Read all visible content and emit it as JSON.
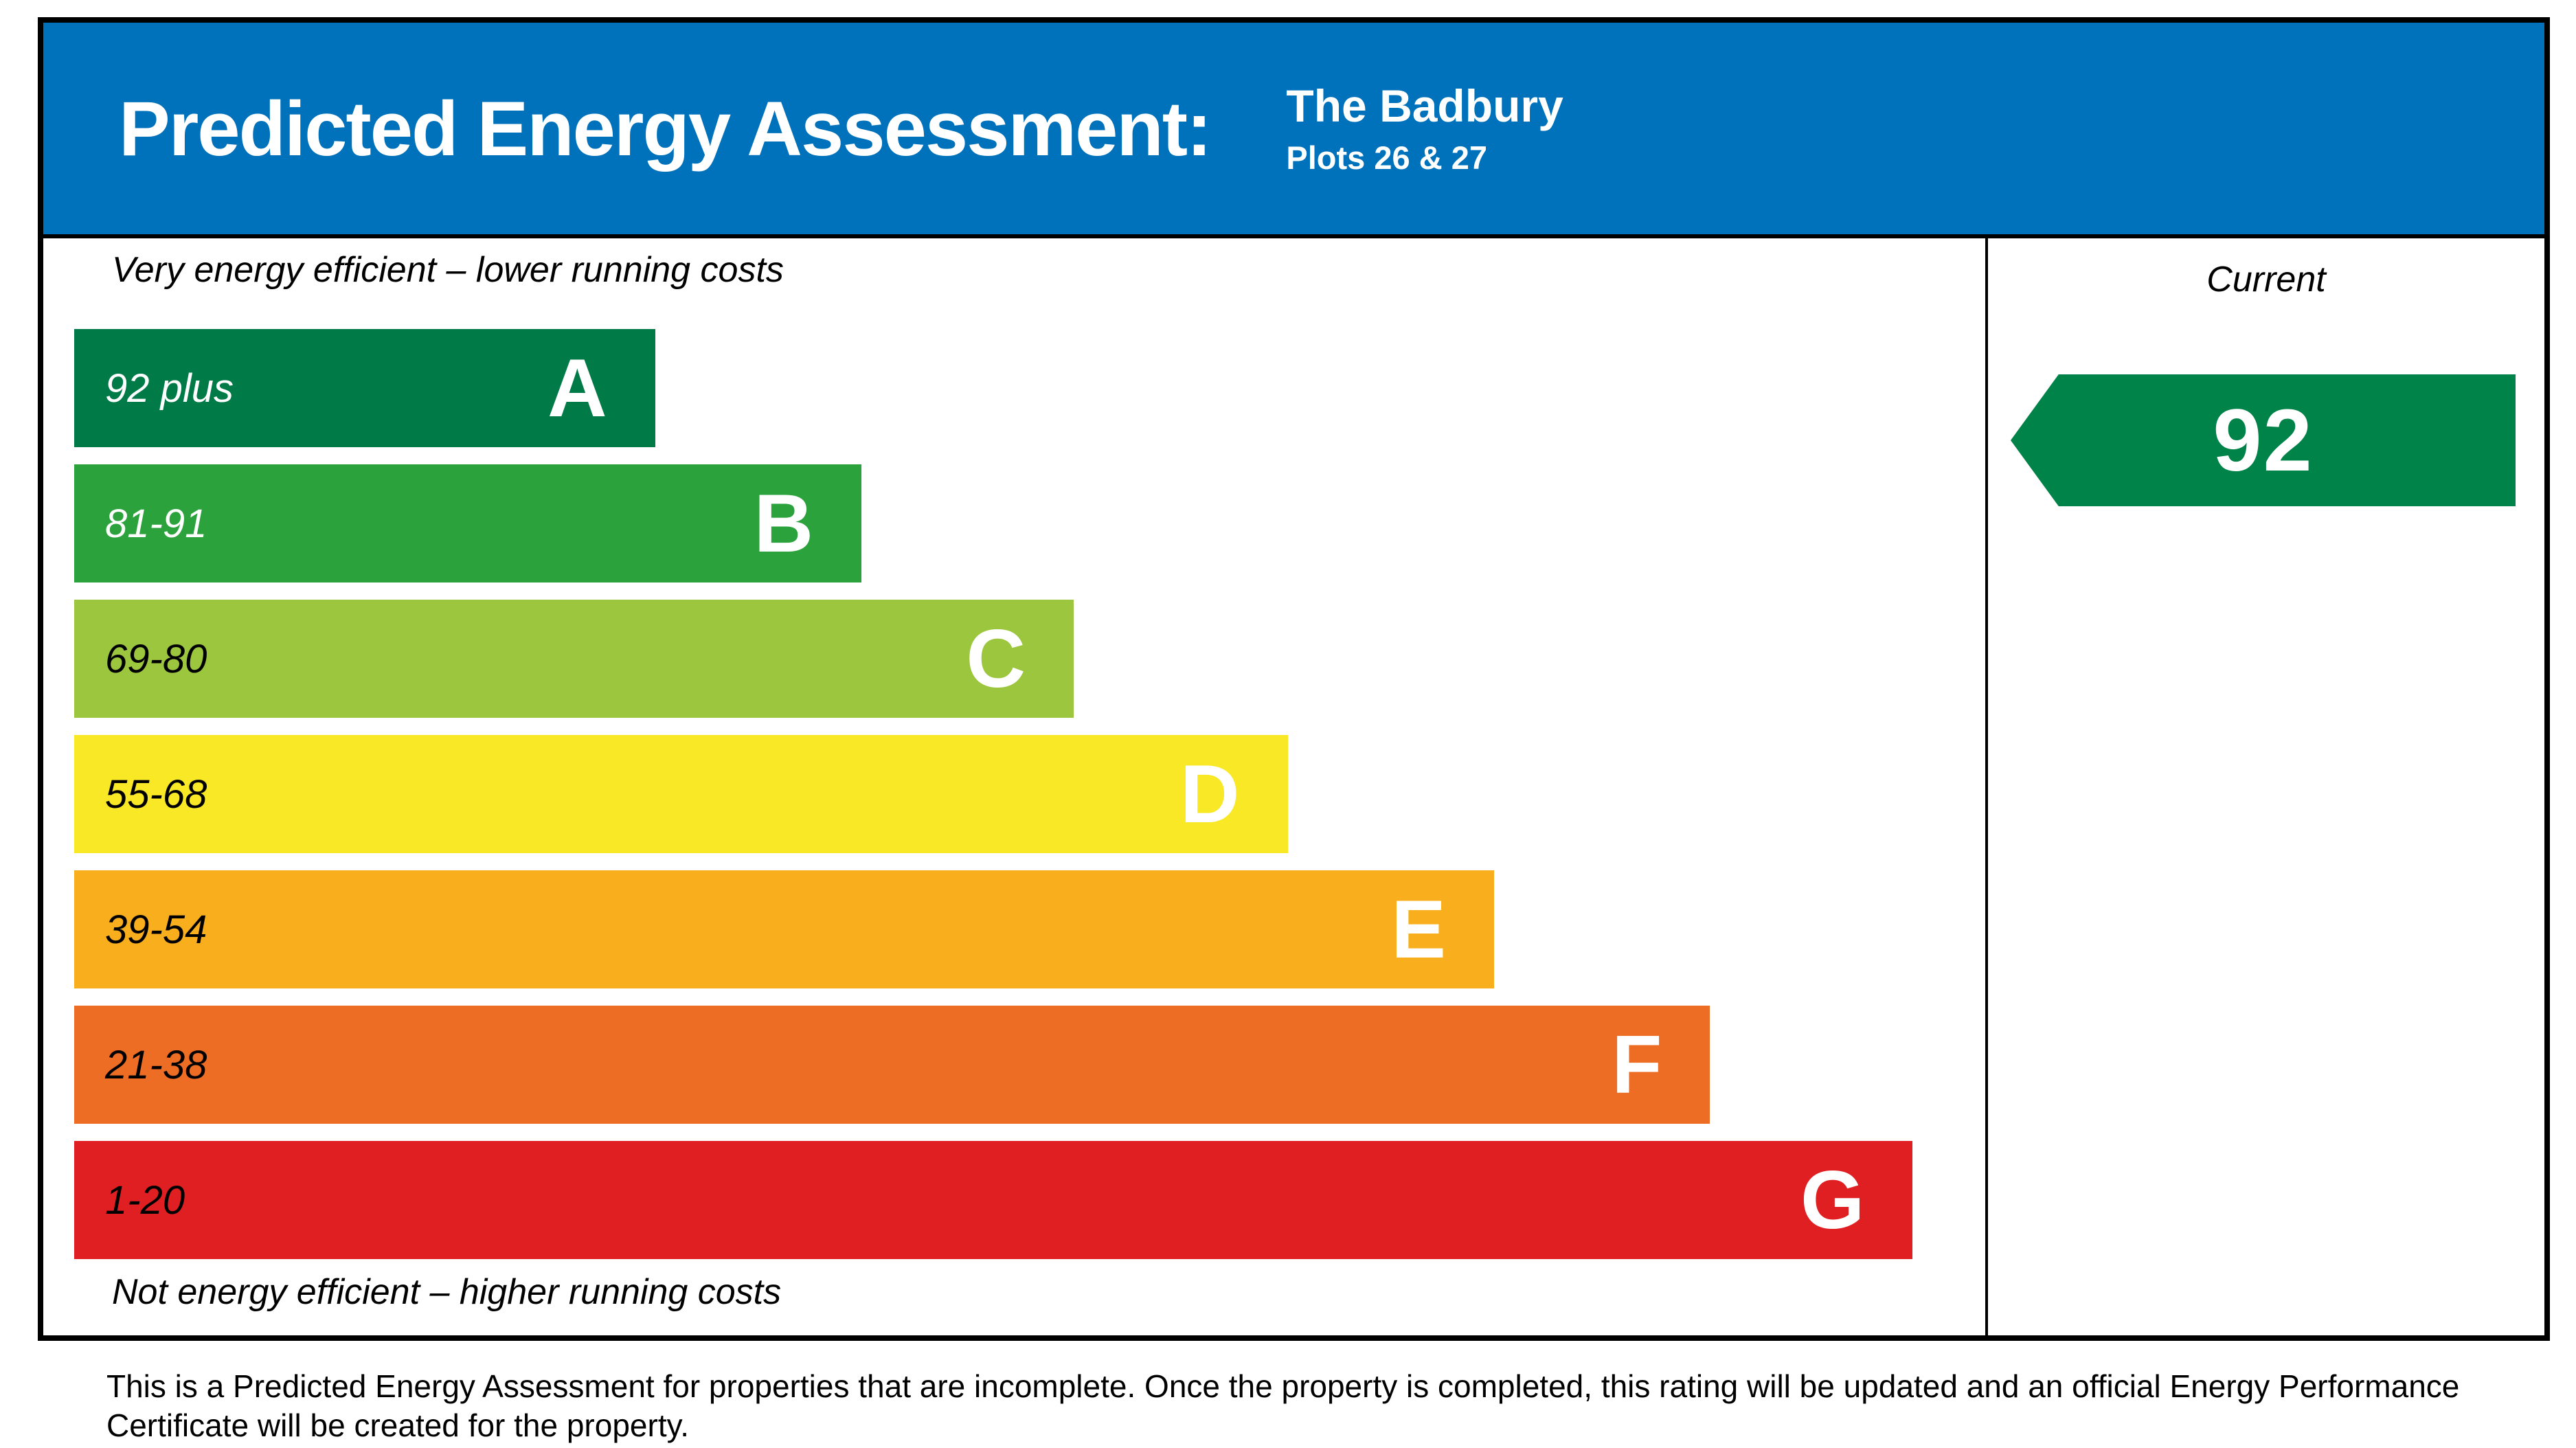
{
  "header": {
    "title": "Predicted Energy Assessment:",
    "property_name": "The Badbury",
    "plots": "Plots 26 & 27",
    "bg_color": "#0072bc"
  },
  "chart": {
    "top_caption": "Very energy efficient – lower running costs",
    "bottom_caption": "Not energy efficient – higher running costs",
    "current_label": "Current",
    "current_value": "92",
    "arrow_color": "#008348",
    "bands": [
      {
        "letter": "A",
        "range": "92 plus",
        "color": "#007a47",
        "range_text_color": "#ffffff",
        "width_pct": 30.4
      },
      {
        "letter": "B",
        "range": "81-91",
        "color": "#2ba23c",
        "range_text_color": "#ffffff",
        "width_pct": 41.2
      },
      {
        "letter": "C",
        "range": "69-80",
        "color": "#9bc63d",
        "range_text_color": "#000000",
        "width_pct": 52.3
      },
      {
        "letter": "D",
        "range": "55-68",
        "color": "#f8e826",
        "range_text_color": "#000000",
        "width_pct": 63.5
      },
      {
        "letter": "E",
        "range": "39-54",
        "color": "#f9ae1d",
        "range_text_color": "#000000",
        "width_pct": 74.3
      },
      {
        "letter": "F",
        "range": "21-38",
        "color": "#ed6d25",
        "range_text_color": "#000000",
        "width_pct": 85.6
      },
      {
        "letter": "G",
        "range": "1-20",
        "color": "#e01f23",
        "range_text_color": "#000000",
        "width_pct": 96.2
      }
    ]
  },
  "footer": {
    "text": "This is a Predicted Energy Assessment for properties that are incomplete. Once the property is completed, this rating will be updated and an official Energy Performance Certificate will be created for the property."
  },
  "chart_data": {
    "type": "bar",
    "title": "Predicted Energy Assessment: The Badbury, Plots 26 & 27",
    "categories": [
      "A",
      "B",
      "C",
      "D",
      "E",
      "F",
      "G"
    ],
    "band_score_ranges": [
      "92 plus",
      "81-91",
      "69-80",
      "55-68",
      "39-54",
      "21-38",
      "1-20"
    ],
    "values": [
      30.4,
      41.2,
      52.3,
      63.5,
      74.3,
      85.6,
      96.2
    ],
    "values_note": "relative bar widths in percent of scale column; standard EPC band ladder",
    "band_colors": [
      "#007a47",
      "#2ba23c",
      "#9bc63d",
      "#f8e826",
      "#f9ae1d",
      "#ed6d25",
      "#e01f23"
    ],
    "current_rating": 92,
    "current_band": "A",
    "column_header": "Current",
    "annotations": [
      "Very energy efficient – lower running costs",
      "Not energy efficient – higher running costs"
    ],
    "legend_position": "none",
    "grid": false
  }
}
